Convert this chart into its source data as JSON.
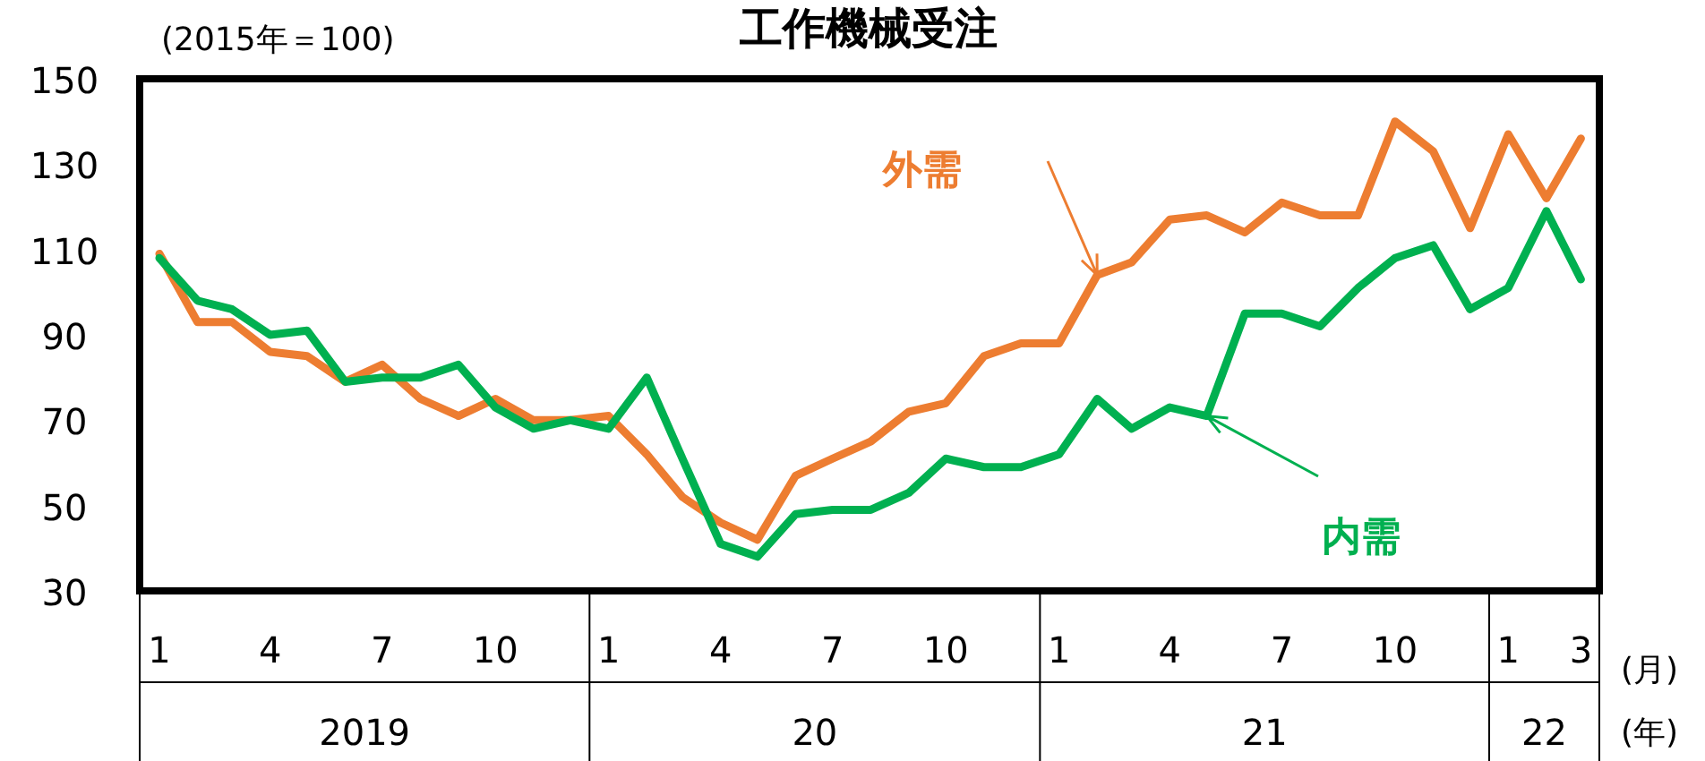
{
  "chart_data": {
    "type": "line",
    "title": "工作機械受注",
    "annotations": [
      "(2015年＝100)",
      "(月)",
      "(年)",
      "2019",
      "20",
      "21",
      "22"
    ],
    "x": [
      "2019-01",
      "2019-02",
      "2019-03",
      "2019-04",
      "2019-05",
      "2019-06",
      "2019-07",
      "2019-08",
      "2019-09",
      "2019-10",
      "2019-11",
      "2019-12",
      "2020-01",
      "2020-02",
      "2020-03",
      "2020-04",
      "2020-05",
      "2020-06",
      "2020-07",
      "2020-08",
      "2020-09",
      "2020-10",
      "2020-11",
      "2020-12",
      "2021-01",
      "2021-02",
      "2021-03",
      "2021-04",
      "2021-05",
      "2021-06",
      "2021-07",
      "2021-08",
      "2021-09",
      "2021-10",
      "2021-11",
      "2021-12",
      "2022-01",
      "2022-02",
      "2022-03"
    ],
    "series": [
      {
        "name": "外需",
        "color": "#ed7d31",
        "values": [
          109,
          93,
          93,
          86,
          85,
          79,
          83,
          75,
          71,
          75,
          70,
          70,
          71,
          62,
          52,
          46,
          42,
          57,
          61,
          65,
          72,
          74,
          85,
          88,
          88,
          104,
          107,
          117,
          118,
          114,
          121,
          118,
          118,
          140,
          133,
          115,
          137,
          122,
          136
        ]
      },
      {
        "name": "内需",
        "color": "#00b050",
        "values": [
          108,
          98,
          96,
          90,
          91,
          79,
          80,
          80,
          83,
          73,
          68,
          70,
          68,
          80,
          61,
          41,
          38,
          48,
          49,
          49,
          53,
          61,
          59,
          59,
          62,
          75,
          68,
          73,
          71,
          95,
          95,
          92,
          101,
          108,
          111,
          96,
          101,
          119,
          103
        ]
      }
    ],
    "xlim": [
      "2018-12-16",
      "2022-03-16"
    ],
    "xticks": [
      {
        "value": "2019-01",
        "label": "1"
      },
      {
        "value": "2019-04",
        "label": "4"
      },
      {
        "value": "2019-07",
        "label": "7"
      },
      {
        "value": "2019-10",
        "label": "10"
      },
      {
        "value": "2020-01",
        "label": "1"
      },
      {
        "value": "2020-04",
        "label": "4"
      },
      {
        "value": "2020-07",
        "label": "7"
      },
      {
        "value": "2020-10",
        "label": "10"
      },
      {
        "value": "2021-01",
        "label": "1"
      },
      {
        "value": "2021-04",
        "label": "4"
      },
      {
        "value": "2021-07",
        "label": "7"
      },
      {
        "value": "2021-10",
        "label": "10"
      },
      {
        "value": "2022-01",
        "label": "1"
      },
      {
        "value": "2022-03",
        "label": "3"
      }
    ],
    "ylim": [
      30,
      150
    ],
    "yticks": [
      30,
      50,
      70,
      90,
      110,
      130,
      150
    ],
    "grid": false,
    "marker": "none",
    "line_style": "solid"
  }
}
